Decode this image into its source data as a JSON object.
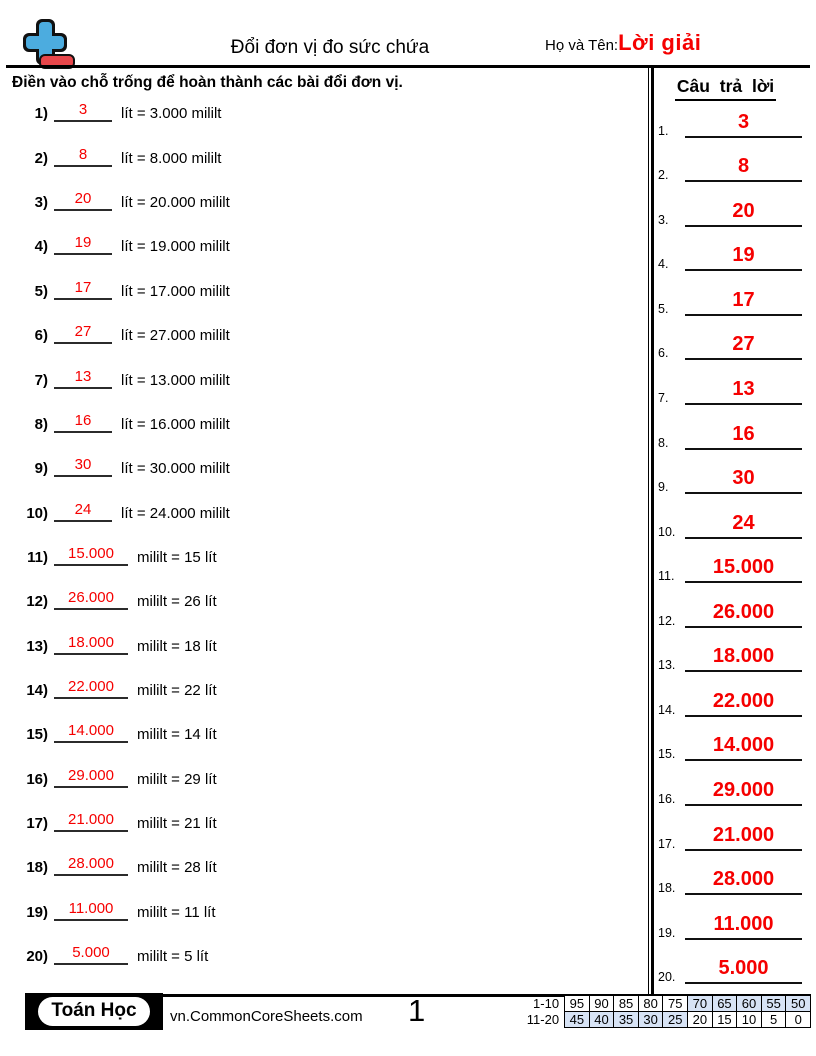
{
  "header": {
    "title": "Đổi đơn vị đo sức chứa",
    "name_label": "Họ và Tên:",
    "name_value": "Lời giải"
  },
  "instruction": "Điền vào chỗ trống để hoàn thành các bài đổi đơn vị.",
  "problems": [
    {
      "num": "1)",
      "answer": "3",
      "equation": "lít = 3.000 mililt"
    },
    {
      "num": "2)",
      "answer": "8",
      "equation": "lít = 8.000 mililt"
    },
    {
      "num": "3)",
      "answer": "20",
      "equation": "lít = 20.000 mililt"
    },
    {
      "num": "4)",
      "answer": "19",
      "equation": "lít = 19.000 mililt"
    },
    {
      "num": "5)",
      "answer": "17",
      "equation": "lít = 17.000 mililt"
    },
    {
      "num": "6)",
      "answer": "27",
      "equation": "lít = 27.000 mililt"
    },
    {
      "num": "7)",
      "answer": "13",
      "equation": "lít = 13.000 mililt"
    },
    {
      "num": "8)",
      "answer": "16",
      "equation": "lít = 16.000 mililt"
    },
    {
      "num": "9)",
      "answer": "30",
      "equation": "lít = 30.000 mililt"
    },
    {
      "num": "10)",
      "answer": "24",
      "equation": "lít = 24.000 mililt"
    },
    {
      "num": "11)",
      "answer": "15.000",
      "equation": "mililt = 15 lít"
    },
    {
      "num": "12)",
      "answer": "26.000",
      "equation": "mililt = 26 lít"
    },
    {
      "num": "13)",
      "answer": "18.000",
      "equation": "mililt = 18 lít"
    },
    {
      "num": "14)",
      "answer": "22.000",
      "equation": "mililt = 22 lít"
    },
    {
      "num": "15)",
      "answer": "14.000",
      "equation": "mililt = 14 lít"
    },
    {
      "num": "16)",
      "answer": "29.000",
      "equation": "mililt = 29 lít"
    },
    {
      "num": "17)",
      "answer": "21.000",
      "equation": "mililt = 21 lít"
    },
    {
      "num": "18)",
      "answer": "28.000",
      "equation": "mililt = 28 lít"
    },
    {
      "num": "19)",
      "answer": "11.000",
      "equation": "mililt = 11 lít"
    },
    {
      "num": "20)",
      "answer": "5.000",
      "equation": "mililt = 5 lít"
    }
  ],
  "answer_key": {
    "title": "Câu trả lời",
    "items": [
      {
        "num": "1.",
        "value": "3"
      },
      {
        "num": "2.",
        "value": "8"
      },
      {
        "num": "3.",
        "value": "20"
      },
      {
        "num": "4.",
        "value": "19"
      },
      {
        "num": "5.",
        "value": "17"
      },
      {
        "num": "6.",
        "value": "27"
      },
      {
        "num": "7.",
        "value": "13"
      },
      {
        "num": "8.",
        "value": "16"
      },
      {
        "num": "9.",
        "value": "30"
      },
      {
        "num": "10.",
        "value": "24"
      },
      {
        "num": "11.",
        "value": "15.000"
      },
      {
        "num": "12.",
        "value": "26.000"
      },
      {
        "num": "13.",
        "value": "18.000"
      },
      {
        "num": "14.",
        "value": "22.000"
      },
      {
        "num": "15.",
        "value": "14.000"
      },
      {
        "num": "16.",
        "value": "29.000"
      },
      {
        "num": "17.",
        "value": "21.000"
      },
      {
        "num": "18.",
        "value": "28.000"
      },
      {
        "num": "19.",
        "value": "11.000"
      },
      {
        "num": "20.",
        "value": "5.000"
      }
    ]
  },
  "footer": {
    "badge_label": "Toán Học",
    "website": "vn.CommonCoreSheets.com",
    "page_number": "1",
    "score_table": {
      "rows": [
        {
          "label": "1-10",
          "cells": [
            "95",
            "90",
            "85",
            "80",
            "75",
            "70",
            "65",
            "60",
            "55",
            "50"
          ],
          "highlighted": [
            5,
            6,
            7,
            8,
            9
          ]
        },
        {
          "label": "11-20",
          "cells": [
            "45",
            "40",
            "35",
            "30",
            "25",
            "20",
            "15",
            "10",
            "5",
            "0"
          ],
          "highlighted": [
            0,
            1,
            2,
            3,
            4
          ]
        }
      ]
    }
  },
  "colors": {
    "answer_red": "#f50000",
    "logo_blue": "#4cacdf",
    "logo_red": "#e8474b",
    "table_highlight": "#d7e3f5"
  }
}
